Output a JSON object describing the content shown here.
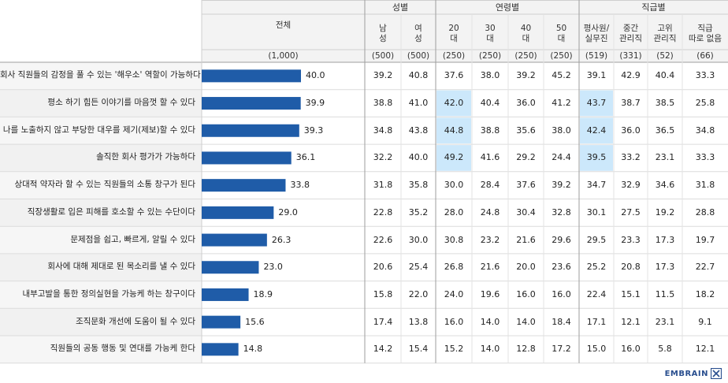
{
  "header": {
    "total_label": "전체",
    "total_base": "(1,000)",
    "groups": [
      {
        "label": "성별",
        "cols": [
          {
            "label": "남\n성",
            "base": "(500)"
          },
          {
            "label": "여\n성",
            "base": "(500)"
          }
        ]
      },
      {
        "label": "연령별",
        "cols": [
          {
            "label": "20\n대",
            "base": "(250)"
          },
          {
            "label": "30\n대",
            "base": "(250)"
          },
          {
            "label": "40\n대",
            "base": "(250)"
          },
          {
            "label": "50\n대",
            "base": "(250)"
          }
        ]
      },
      {
        "label": "직급별",
        "cols": [
          {
            "label": "평사원/\n실무진",
            "base": "(519)"
          },
          {
            "label": "중간\n관리직",
            "base": "(331)"
          },
          {
            "label": "고위\n관리직",
            "base": "(52)"
          },
          {
            "label": "직급\n따로 없음",
            "base": "(66)"
          }
        ]
      }
    ]
  },
  "chart_data": {
    "type": "bar",
    "orientation": "horizontal",
    "xlim": [
      0,
      50
    ],
    "categories": [
      "회사 직원들의 감정을 풀 수 있는 '해우소' 역할이 가능하다",
      "평소 하기 힘든 이야기를 마음껏 할 수 있다",
      "나를 노출하지 않고 부당한 대우를 제기(제보)할 수 있다",
      "솔직한 회사 평가가 가능하다",
      "상대적 약자라 할 수 있는 직원들의 소통 창구가 된다",
      "직장생활로 입은 피해를 호소할 수 있는 수단이다",
      "문제점을 쉽고, 빠르게, 알릴 수 있다",
      "회사에 대해 제대로 된 목소리를 낼 수 있다",
      "내부고발을 통한 정의실현을 가능케 하는 창구이다",
      "조직문화 개선에 도움이 될 수 있다",
      "직원들의 공동 행동 및 연대를 가능케 한다"
    ],
    "values": [
      40.0,
      39.9,
      39.3,
      36.1,
      33.8,
      29.0,
      26.3,
      23.0,
      18.9,
      15.6,
      14.8
    ],
    "value_labels": [
      "40.0",
      "39.9",
      "39.3",
      "36.1",
      "33.8",
      "29.0",
      "26.3",
      "23.0",
      "18.9",
      "15.6",
      "14.8"
    ],
    "bar_color": "#1f5ca8",
    "highlight_color": "#cce8fb",
    "table_rows": [
      [
        "39.2",
        "40.8",
        "37.6",
        "38.0",
        "39.2",
        "45.2",
        "39.1",
        "42.9",
        "40.4",
        "33.3"
      ],
      [
        "38.8",
        "41.0",
        "42.0",
        "40.4",
        "36.0",
        "41.2",
        "43.7",
        "38.7",
        "38.5",
        "25.8"
      ],
      [
        "34.8",
        "43.8",
        "44.8",
        "38.8",
        "35.6",
        "38.0",
        "42.4",
        "36.0",
        "36.5",
        "34.8"
      ],
      [
        "32.2",
        "40.0",
        "49.2",
        "41.6",
        "29.2",
        "24.4",
        "39.5",
        "33.2",
        "23.1",
        "33.3"
      ],
      [
        "31.8",
        "35.8",
        "30.0",
        "28.4",
        "37.6",
        "39.2",
        "34.7",
        "32.9",
        "34.6",
        "31.8"
      ],
      [
        "22.8",
        "35.2",
        "28.0",
        "24.8",
        "30.4",
        "32.8",
        "30.1",
        "27.5",
        "19.2",
        "28.8"
      ],
      [
        "22.6",
        "30.0",
        "30.8",
        "23.2",
        "21.6",
        "29.6",
        "29.5",
        "23.3",
        "17.3",
        "19.7"
      ],
      [
        "20.6",
        "25.4",
        "26.8",
        "21.6",
        "20.0",
        "23.6",
        "25.2",
        "20.8",
        "17.3",
        "22.7"
      ],
      [
        "15.8",
        "22.0",
        "24.0",
        "19.6",
        "16.0",
        "16.0",
        "22.4",
        "15.1",
        "11.5",
        "18.2"
      ],
      [
        "17.4",
        "13.8",
        "16.0",
        "14.0",
        "14.0",
        "18.4",
        "17.1",
        "12.1",
        "23.1",
        "9.1"
      ],
      [
        "14.2",
        "15.4",
        "15.2",
        "14.0",
        "12.8",
        "17.2",
        "15.0",
        "16.0",
        "5.8",
        "12.1"
      ]
    ],
    "highlights": [
      [
        1,
        2
      ],
      [
        1,
        6
      ],
      [
        2,
        2
      ],
      [
        2,
        6
      ],
      [
        3,
        2
      ],
      [
        3,
        6
      ]
    ]
  },
  "brand": {
    "name": "EMBRAIN"
  }
}
